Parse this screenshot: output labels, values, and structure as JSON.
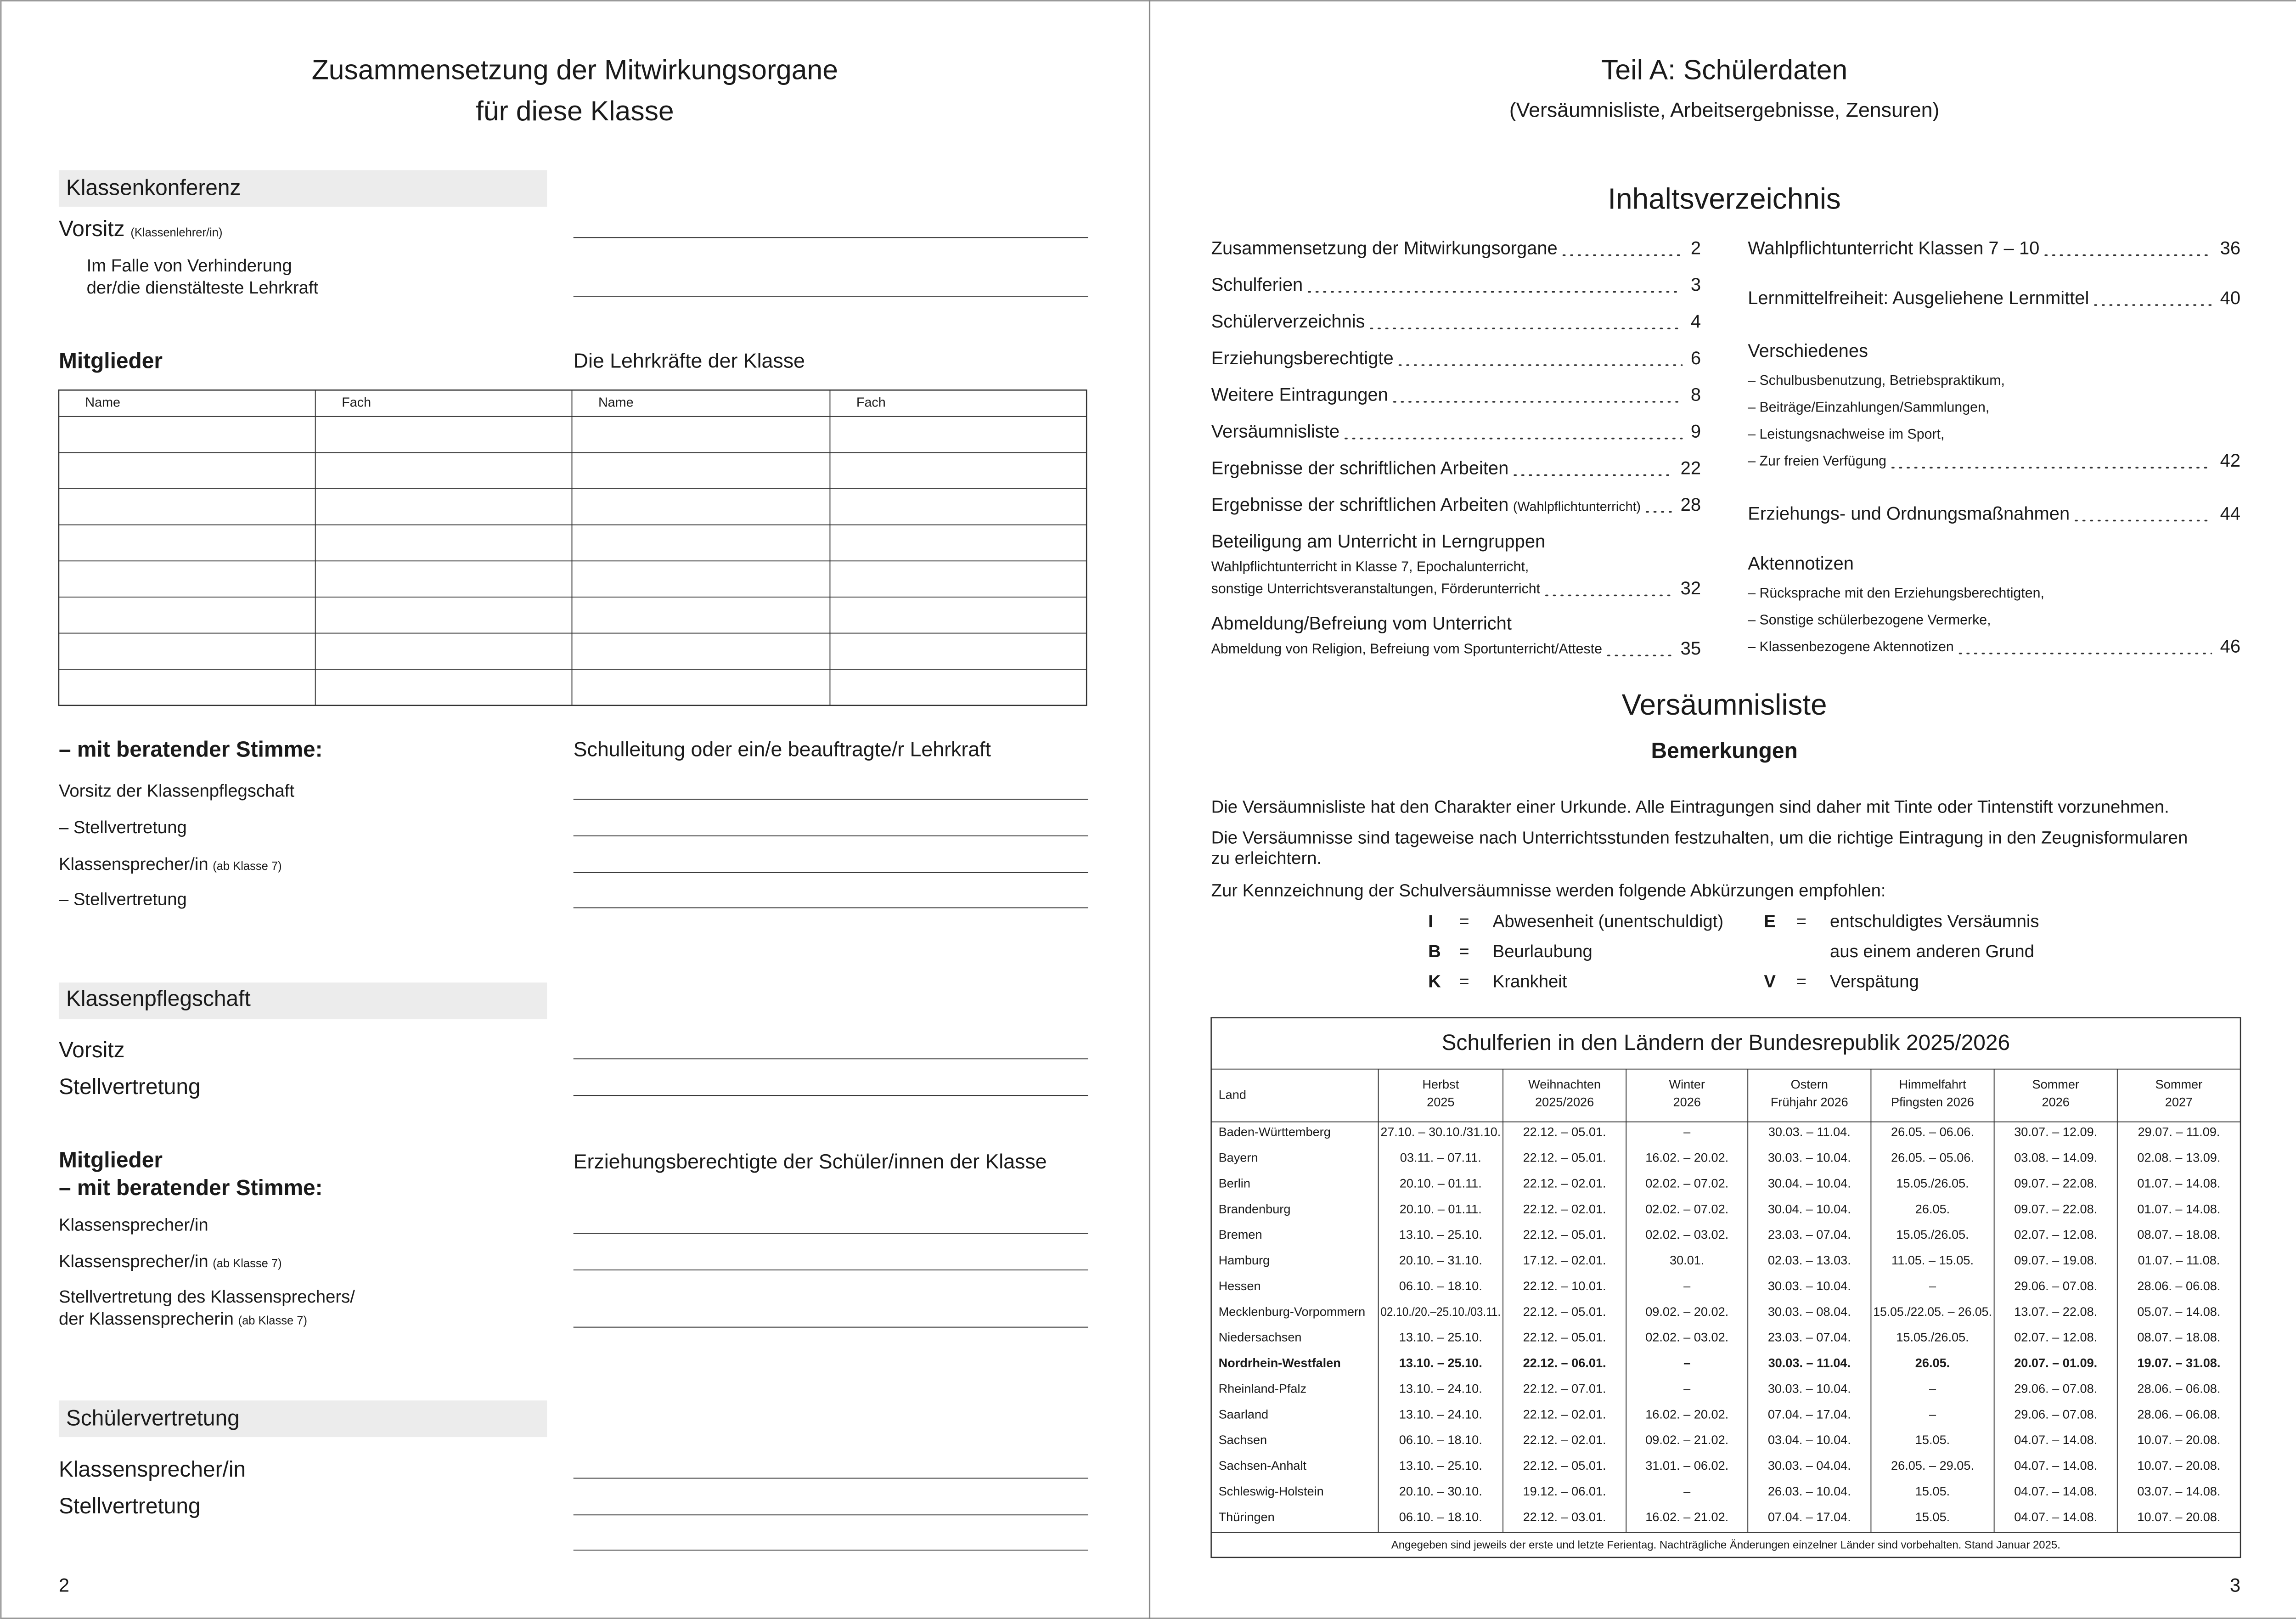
{
  "left": {
    "title": [
      "Zusammensetzung der Mitwirkungsorgane",
      "für diese Klasse"
    ],
    "klassenkonferenz": {
      "heading": "Klassenkonferenz",
      "vorsitz": "Vorsitz",
      "vorsitz_note": "(Klassenlehrer/in)",
      "verhinderung": [
        "Im Falle von Verhinderung",
        "der/die dienstälteste Lehrkraft"
      ],
      "mitglieder": "Mitglieder",
      "lehrkraefte": "Die Lehrkräfte der Klasse",
      "table_header": [
        "Name",
        "Fach",
        "Name",
        "Fach"
      ],
      "beratend": "– mit beratender Stimme:",
      "beratend_right": "Schulleitung oder ein/e beauftragte/r Lehrkraft",
      "beratend_rows": [
        {
          "label": "Vorsitz der Klassenpflegschaft"
        },
        {
          "label": "– Stellvertretung"
        },
        {
          "label": "Klassensprecher/in",
          "note": "(ab Klasse 7)"
        },
        {
          "label": "– Stellvertretung"
        }
      ]
    },
    "klassenpflegschaft": {
      "heading": "Klassenpflegschaft",
      "rows": [
        "Vorsitz",
        "Stellvertretung"
      ],
      "mitglieder": "Mitglieder",
      "beratend": "–  mit beratender Stimme:",
      "right": "Erziehungsberechtigte der Schüler/innen der Klasse",
      "beratend_rows": [
        {
          "label": "Klassensprecher/in"
        },
        {
          "label": "Klassensprecher/in",
          "note": "(ab Klasse 7)"
        },
        {
          "label": "Stellvertretung des Klassensprechers/"
        },
        {
          "label": "der Klassensprecherin",
          "note": "(ab Klasse 7)"
        }
      ]
    },
    "schuelervertretung": {
      "heading": "Schülervertretung",
      "rows": [
        "Klassensprecher/in",
        "Stellvertretung"
      ]
    },
    "page_number": "2"
  },
  "right": {
    "title": "Teil A: Schülerdaten",
    "subtitle": "(Versäumnisliste, Arbeitsergebnisse, Zensuren)",
    "toc": {
      "heading": "Inhaltsverzeichnis",
      "left": [
        {
          "title": "Zusammensetzung der Mitwirkungsorgane",
          "page": "2"
        },
        {
          "title": "Schulferien",
          "page": "3"
        },
        {
          "title": "Schülerverzeichnis",
          "page": "4"
        },
        {
          "title": "Erziehungsberechtigte",
          "page": "6"
        },
        {
          "title": "Weitere Eintragungen",
          "page": "8"
        },
        {
          "title": "Versäumnisliste",
          "page": "9"
        },
        {
          "title": "Ergebnisse der schriftlichen Arbeiten",
          "page": "22"
        },
        {
          "title": "Ergebnisse der schriftlichen Arbeiten",
          "note": "(Wahlpflichtunterricht)",
          "page": "28"
        },
        {
          "title": "Beteiligung am Unterricht in Lerngruppen",
          "sub": [
            "Wahlpflichtunterricht in Klasse 7, Epochalunterricht,",
            "sonstige Unterrichtsveranstaltungen, Förderunterricht"
          ],
          "page": "32"
        },
        {
          "title": "Abmeldung/Befreiung vom Unterricht",
          "sub": [
            "Abmeldung von Religion, Befreiung vom Sportunterricht/Atteste"
          ],
          "page": "35"
        }
      ],
      "right": [
        {
          "title": "Wahlpflichtunterricht Klassen 7 – 10",
          "page": "36"
        },
        {
          "title": "Lernmittelfreiheit: Ausgeliehene Lernmittel",
          "page": "40"
        },
        {
          "title": "Verschiedenes",
          "sub": [
            "– Schulbusbenutzung, Betriebspraktikum,",
            "– Beiträge/Einzahlungen/Sammlungen,",
            "– Leistungsnachweise im Sport,",
            "– Zur freien Verfügung"
          ],
          "page": "42"
        },
        {
          "title": "Erziehungs- und Ordnungsmaßnahmen",
          "page": "44"
        },
        {
          "title": "Aktennotizen",
          "sub": [
            "– Rücksprache mit den Erziehungsberechtigten,",
            "– Sonstige schülerbezogene Vermerke,",
            "– Klassenbezogene Aktennotizen"
          ],
          "page": "46"
        }
      ]
    },
    "section": "Versäumnisliste",
    "subheading": "Bemerkungen",
    "paragraphs": [
      [
        "Die Versäumnisliste hat den Charakter einer Urkunde. Alle Eintragungen sind daher mit Tinte oder Tintenstift vorzunehmen."
      ],
      [
        "Die Versäumnisse sind tageweise nach Unterrichtsstunden festzuhalten, um die richtige Eintragung in den Zeugnisformularen",
        "zu erleichtern."
      ],
      [
        "Zur Kennzeichnung der Schulversäumnisse werden folgende Abkürzungen empfohlen:"
      ]
    ],
    "equals": "=",
    "abbreviations": [
      [
        {
          "key": "I",
          "text": [
            "Abwesenheit (unentschuldigt)"
          ]
        },
        {
          "key": "B",
          "text": [
            "Beurlaubung"
          ]
        },
        {
          "key": "K",
          "text": [
            "Krankheit"
          ]
        }
      ],
      [
        {
          "key": "E",
          "text": [
            "entschuldigtes Versäumnis",
            "aus einem anderen Grund"
          ]
        },
        {
          "key": "V",
          "text": [
            "Verspätung"
          ]
        }
      ]
    ],
    "table": {
      "title": "Schulferien in den Ländern der Bundesrepublik 2025/2026",
      "headers": [
        [
          "Land"
        ],
        [
          "Herbst",
          "2025"
        ],
        [
          "Weihnachten",
          "2025/2026"
        ],
        [
          "Winter",
          "2026"
        ],
        [
          "Ostern",
          "Frühjahr 2026"
        ],
        [
          "Himmelfahrt",
          "Pfingsten 2026"
        ],
        [
          "Sommer",
          "2026"
        ],
        [
          "Sommer",
          "2027"
        ]
      ],
      "rows": [
        [
          "Baden-Württemberg",
          "27.10. – 30.10./31.10.",
          "22.12. – 05.01.",
          "–",
          "30.03. – 11.04.",
          "26.05. – 06.06.",
          "30.07. – 12.09.",
          "29.07. – 11.09."
        ],
        [
          "Bayern",
          "03.11. – 07.11.",
          "22.12. – 05.01.",
          "16.02. – 20.02.",
          "30.03. – 10.04.",
          "26.05. – 05.06.",
          "03.08. – 14.09.",
          "02.08. – 13.09."
        ],
        [
          "Berlin",
          "20.10. – 01.11.",
          "22.12. – 02.01.",
          "02.02. – 07.02.",
          "30.04. – 10.04.",
          "15.05./26.05.",
          "09.07. – 22.08.",
          "01.07. – 14.08."
        ],
        [
          "Brandenburg",
          "20.10. – 01.11.",
          "22.12. – 02.01.",
          "02.02. – 07.02.",
          "30.04. – 10.04.",
          "26.05.",
          "09.07. – 22.08.",
          "01.07. – 14.08."
        ],
        [
          "Bremen",
          "13.10. – 25.10.",
          "22.12. – 05.01.",
          "02.02. – 03.02.",
          "23.03. – 07.04.",
          "15.05./26.05.",
          "02.07. – 12.08.",
          "08.07. – 18.08."
        ],
        [
          "Hamburg",
          "20.10. – 31.10.",
          "17.12. – 02.01.",
          "30.01.",
          "02.03. – 13.03.",
          "11.05. – 15.05.",
          "09.07. – 19.08.",
          "01.07. – 11.08."
        ],
        [
          "Hessen",
          "06.10. – 18.10.",
          "22.12. – 10.01.",
          "–",
          "30.03. – 10.04.",
          "–",
          "29.06. – 07.08.",
          "28.06. – 06.08."
        ],
        [
          "Mecklenburg-Vorpommern",
          "02.10./20.–25.10./03.11.",
          "22.12. – 05.01.",
          "09.02. – 20.02.",
          "30.03. – 08.04.",
          "15.05./22.05. – 26.05.",
          "13.07. – 22.08.",
          "05.07. – 14.08."
        ],
        [
          "Niedersachsen",
          "13.10. – 25.10.",
          "22.12. – 05.01.",
          "02.02. – 03.02.",
          "23.03. – 07.04.",
          "15.05./26.05.",
          "02.07. – 12.08.",
          "08.07. – 18.08."
        ],
        [
          "Nordrhein-Westfalen",
          "13.10. – 25.10.",
          "22.12. – 06.01.",
          "–",
          "30.03. – 11.04.",
          "26.05.",
          "20.07. – 01.09.",
          "19.07. – 31.08."
        ],
        [
          "Rheinland-Pfalz",
          "13.10. – 24.10.",
          "22.12. – 07.01.",
          "–",
          "30.03. – 10.04.",
          "–",
          "29.06. – 07.08.",
          "28.06. – 06.08."
        ],
        [
          "Saarland",
          "13.10. – 24.10.",
          "22.12. – 02.01.",
          "16.02. – 20.02.",
          "07.04. – 17.04.",
          "–",
          "29.06. – 07.08.",
          "28.06. – 06.08."
        ],
        [
          "Sachsen",
          "06.10. – 18.10.",
          "22.12. – 02.01.",
          "09.02. – 21.02.",
          "03.04. – 10.04.",
          "15.05.",
          "04.07. – 14.08.",
          "10.07. – 20.08."
        ],
        [
          "Sachsen-Anhalt",
          "13.10. – 25.10.",
          "22.12. – 05.01.",
          "31.01. – 06.02.",
          "30.03. – 04.04.",
          "26.05. – 29.05.",
          "04.07. – 14.08.",
          "10.07. – 20.08."
        ],
        [
          "Schleswig-Holstein",
          "20.10. – 30.10.",
          "19.12. – 06.01.",
          "–",
          "26.03. – 10.04.",
          "15.05.",
          "04.07. – 14.08.",
          "03.07. – 14.08."
        ],
        [
          "Thüringen",
          "06.10. – 18.10.",
          "22.12. – 03.01.",
          "16.02. – 21.02.",
          "07.04. – 17.04.",
          "15.05.",
          "04.07. – 14.08.",
          "10.07. – 20.08."
        ]
      ],
      "footnote": "Angegeben sind jeweils der erste und letzte Ferientag. Nachträgliche Änderungen einzelner Länder sind vorbehalten. Stand Januar 2025."
    },
    "page_number": "3"
  }
}
